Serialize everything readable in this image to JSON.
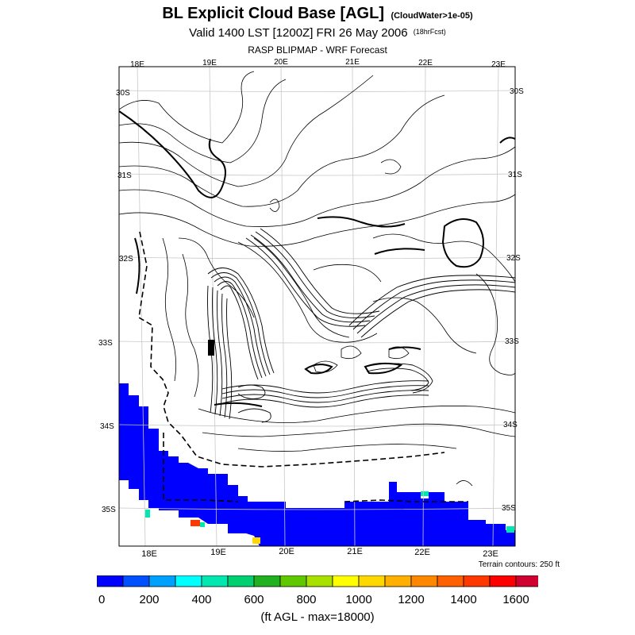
{
  "title": "BL Explicit Cloud Base [AGL]",
  "title_note": "(CloudWater>1e-05)",
  "subtitle": "Valid 1400 LST [1200Z] FRI 26 May 2006",
  "subtitle_note": "(18hrFcst)",
  "source": "RASP BLIPMAP - WRF Forecast",
  "lon_labels": [
    "18E",
    "19E",
    "20E",
    "21E",
    "22E",
    "23E"
  ],
  "lat_labels": [
    "30S",
    "31S",
    "32S",
    "33S",
    "34S",
    "35S"
  ],
  "terrain_note": "Terrain contours: 250 ft",
  "colorbar": {
    "colors": [
      "#0000ff",
      "#0050ff",
      "#00a0ff",
      "#00ffff",
      "#00e8b0",
      "#00d070",
      "#20b020",
      "#60c800",
      "#a8e000",
      "#ffff00",
      "#ffd800",
      "#ffb000",
      "#ff8800",
      "#ff6000",
      "#ff3800",
      "#ff0000",
      "#d00030"
    ],
    "labels": [
      "0",
      "200",
      "400",
      "600",
      "800",
      "1000",
      "1200",
      "1400",
      "1600"
    ],
    "label": "(ft AGL - max=18000)"
  },
  "colors": {
    "cloud_fill": "#0000ff",
    "contour": "#000000",
    "background": "#ffffff"
  }
}
